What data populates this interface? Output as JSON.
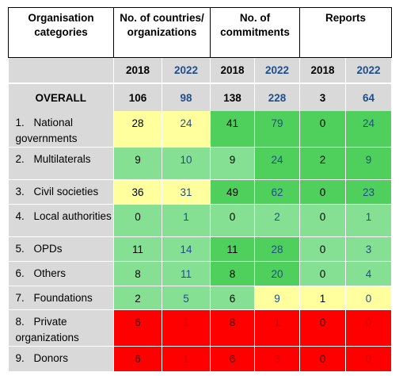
{
  "headers": {
    "categories": "Organisation categories",
    "countries": "No. of countries/ organizations",
    "commitments": "No. of commitments",
    "reports": "Reports"
  },
  "years": [
    "2018",
    "2022",
    "2018",
    "2022",
    "2018",
    "2022"
  ],
  "overall": {
    "label": "OVERALL",
    "values": [
      "106",
      "98",
      "138",
      "228",
      "3",
      "64"
    ]
  },
  "rows": [
    {
      "num": "1.",
      "label": "National governments",
      "values": [
        "28",
        "24",
        "41",
        "79",
        "0",
        "24"
      ],
      "colors": [
        "#ffff9e",
        "#ffff9e",
        "#4fcf5c",
        "#4fcf5c",
        "#4fcf5c",
        "#4fcf5c"
      ]
    },
    {
      "num": "2.",
      "label": "Multilaterals",
      "values": [
        "9",
        "10",
        "9",
        "24",
        "2",
        "9"
      ],
      "colors": [
        "#85e093",
        "#85e093",
        "#85e093",
        "#4fcf5c",
        "#4fcf5c",
        "#4fcf5c"
      ]
    },
    {
      "num": "3.",
      "label": "Civil societies",
      "values": [
        "36",
        "31",
        "49",
        "62",
        "0",
        "23"
      ],
      "colors": [
        "#ffff9e",
        "#ffff9e",
        "#4fcf5c",
        "#4fcf5c",
        "#4fcf5c",
        "#4fcf5c"
      ]
    },
    {
      "num": "4.",
      "label": "Local authorities",
      "values": [
        "0",
        "1",
        "0",
        "2",
        "0",
        "1"
      ],
      "colors": [
        "#85e093",
        "#85e093",
        "#85e093",
        "#85e093",
        "#85e093",
        "#85e093"
      ]
    },
    {
      "num": "5.",
      "label": "OPDs",
      "values": [
        "11",
        "14",
        "11",
        "28",
        "0",
        "3"
      ],
      "colors": [
        "#85e093",
        "#85e093",
        "#4fcf5c",
        "#4fcf5c",
        "#85e093",
        "#85e093"
      ]
    },
    {
      "num": "6.",
      "label": "Others",
      "values": [
        "8",
        "11",
        "8",
        "20",
        "0",
        "4"
      ],
      "colors": [
        "#85e093",
        "#85e093",
        "#4fcf5c",
        "#4fcf5c",
        "#85e093",
        "#85e093"
      ]
    },
    {
      "num": "7.",
      "label": "Foundations",
      "values": [
        "2",
        "5",
        "6",
        "9",
        "1",
        "0"
      ],
      "colors": [
        "#85e093",
        "#85e093",
        "#85e093",
        "#ffff9e",
        "#ffff9e",
        "#ffff9e"
      ]
    },
    {
      "num": "8.",
      "label": "Private organizations",
      "values": [
        "6",
        "1",
        "8",
        "1",
        "0",
        "0"
      ],
      "colors": [
        "#ff0000",
        "#ff0000",
        "#ff0000",
        "#ff0000",
        "#ff0000",
        "#ff0000"
      ]
    },
    {
      "num": "9.",
      "label": "Donors",
      "values": [
        "6",
        "1",
        "6",
        "3",
        "0",
        "0"
      ],
      "colors": [
        "#ff0000",
        "#ff0000",
        "#ff0000",
        "#ff0000",
        "#ff0000",
        "#ff0000"
      ]
    }
  ]
}
